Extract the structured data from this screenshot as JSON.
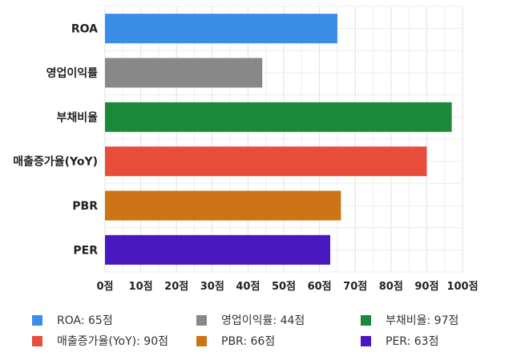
{
  "chart_data": {
    "type": "bar",
    "orientation": "horizontal",
    "categories": [
      "ROA",
      "영업이익률",
      "부채비율",
      "매출증가율(YoY)",
      "PBR",
      "PER"
    ],
    "values": [
      65,
      44,
      97,
      90,
      66,
      63
    ],
    "colors": [
      "#3a8ee6",
      "#888888",
      "#1a8a3a",
      "#e84c3a",
      "#cc7416",
      "#4a18c0"
    ],
    "xlim": [
      0,
      100
    ],
    "xticks": [
      0,
      10,
      20,
      30,
      40,
      50,
      60,
      70,
      80,
      90,
      100
    ],
    "tick_suffix": "점",
    "grid": true,
    "legend_position": "bottom"
  },
  "legend": [
    {
      "label": "ROA: 65점",
      "color": "#3a8ee6"
    },
    {
      "label": "영업이익률: 44점",
      "color": "#888888"
    },
    {
      "label": "부채비율: 97점",
      "color": "#1a8a3a"
    },
    {
      "label": "매출증가율(YoY): 90점",
      "color": "#e84c3a"
    },
    {
      "label": "PBR: 66점",
      "color": "#cc7416"
    },
    {
      "label": "PER: 63점",
      "color": "#4a18c0"
    }
  ]
}
